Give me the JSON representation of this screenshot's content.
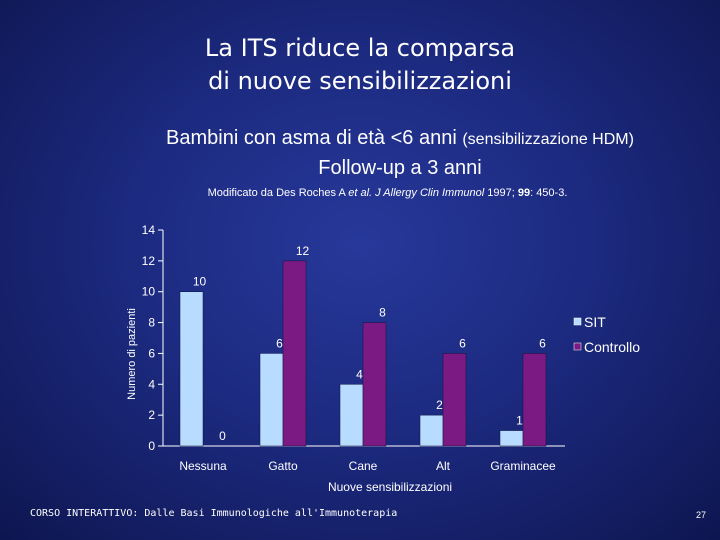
{
  "slide": {
    "title_line1": "La ITS riduce la comparsa",
    "title_line2": "di nuove sensibilizzazioni",
    "subtitle_line1_main": "Bambini con asma di età <6 anni",
    "subtitle_line1_small": "(sensibilizzazione HDM)",
    "subtitle_line2": "Follow-up a 3 anni",
    "source_prefix": "Modificato da Des Roches A",
    "source_etal": "et al.",
    "source_journal": "J Allergy Clin Immunol",
    "source_year": "1997;",
    "source_volume": "99",
    "source_pages": ": 450-3.",
    "footer": "CORSO INTERATTIVO: Dalle Basi Immunologiche all'Immunoterapia",
    "page_number": "27"
  },
  "chart_data": {
    "type": "bar",
    "categories": [
      "Nessuna",
      "Gatto",
      "Cane",
      "Alt",
      "Graminacee"
    ],
    "series": [
      {
        "name": "SIT",
        "values": [
          10,
          6,
          4,
          2,
          1
        ],
        "color": "#b7dcff"
      },
      {
        "name": "Controllo",
        "values": [
          0,
          12,
          8,
          6,
          6
        ],
        "color": "#7c1a84"
      }
    ],
    "xlabel": "Nuove sensibilizzazioni",
    "ylabel": "Numero di pazienti",
    "ylim": [
      0,
      14
    ],
    "yticks": [
      0,
      2,
      4,
      6,
      8,
      10,
      12,
      14
    ],
    "legend_position": "right",
    "grid": false
  }
}
